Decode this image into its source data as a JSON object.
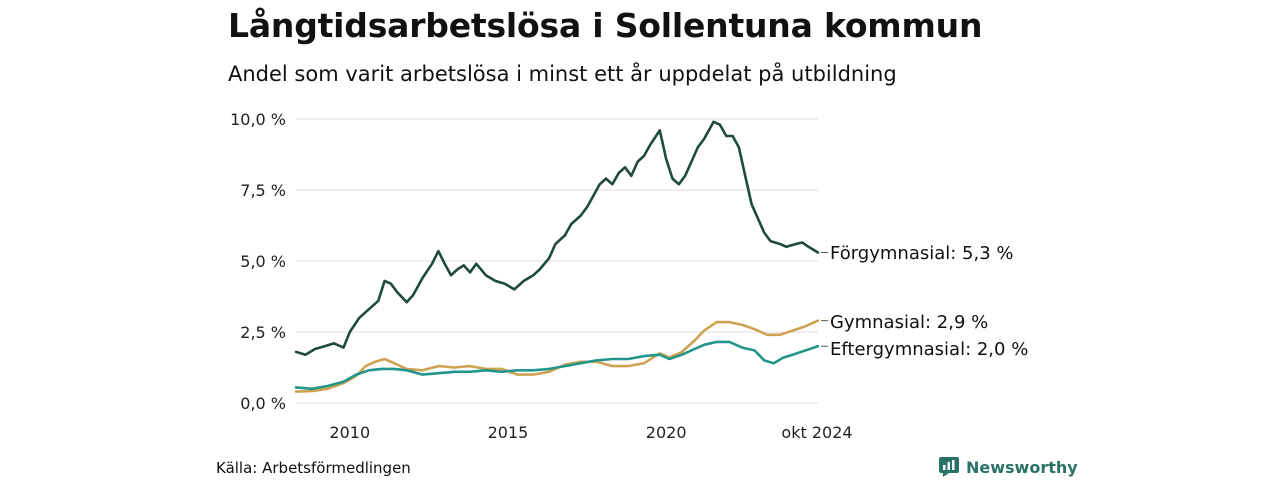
{
  "title": "Långtidsarbetslösa i Sollentuna kommun",
  "subtitle": "Andel som varit arbetslösa i minst ett år uppdelat på utbildning",
  "source": "Källa: Arbetsförmedlingen",
  "brand": "Newsworthy",
  "colors": {
    "forgymnasial": "#1f4a40",
    "gymnasial": "#cfa252",
    "eftergymnasial": "#22968a",
    "grid": "#dddddd",
    "brand": "#2a7268"
  },
  "chart_data": {
    "type": "line",
    "title": "Långtidsarbetslösa i Sollentuna kommun",
    "subtitle": "Andel som varit arbetslösa i minst ett år uppdelat på utbildning",
    "xlabel": "",
    "ylabel": "",
    "xlim": [
      2008.3,
      2024.8
    ],
    "ylim": [
      0,
      10
    ],
    "y_ticks": [
      0,
      2.5,
      5,
      7.5,
      10
    ],
    "y_tick_labels": [
      "0,0 %",
      "2,5 %",
      "5,0 %",
      "7,5 %",
      "10,0 %"
    ],
    "x_ticks": [
      2010,
      2015,
      2020,
      2024.8
    ],
    "x_tick_labels": [
      "2010",
      "2015",
      "2020",
      "okt 2024"
    ],
    "grid": true,
    "series": [
      {
        "name": "Förgymnasial",
        "end_label": "Förgymnasial: 5,3 %",
        "color": "#1f4a40",
        "points": [
          [
            2008.3,
            1.8
          ],
          [
            2008.6,
            1.7
          ],
          [
            2008.9,
            1.9
          ],
          [
            2009.2,
            2.0
          ],
          [
            2009.5,
            2.1
          ],
          [
            2009.8,
            1.95
          ],
          [
            2010.0,
            2.5
          ],
          [
            2010.3,
            3.0
          ],
          [
            2010.6,
            3.3
          ],
          [
            2010.9,
            3.6
          ],
          [
            2011.1,
            4.3
          ],
          [
            2011.3,
            4.2
          ],
          [
            2011.5,
            3.9
          ],
          [
            2011.8,
            3.55
          ],
          [
            2012.0,
            3.8
          ],
          [
            2012.3,
            4.4
          ],
          [
            2012.6,
            4.9
          ],
          [
            2012.8,
            5.35
          ],
          [
            2013.0,
            4.9
          ],
          [
            2013.2,
            4.5
          ],
          [
            2013.4,
            4.7
          ],
          [
            2013.6,
            4.85
          ],
          [
            2013.8,
            4.6
          ],
          [
            2014.0,
            4.9
          ],
          [
            2014.3,
            4.5
          ],
          [
            2014.6,
            4.3
          ],
          [
            2014.9,
            4.2
          ],
          [
            2015.2,
            4.0
          ],
          [
            2015.5,
            4.3
          ],
          [
            2015.8,
            4.5
          ],
          [
            2016.0,
            4.7
          ],
          [
            2016.3,
            5.1
          ],
          [
            2016.5,
            5.6
          ],
          [
            2016.8,
            5.9
          ],
          [
            2017.0,
            6.3
          ],
          [
            2017.3,
            6.6
          ],
          [
            2017.5,
            6.9
          ],
          [
            2017.7,
            7.3
          ],
          [
            2017.9,
            7.7
          ],
          [
            2018.1,
            7.9
          ],
          [
            2018.3,
            7.7
          ],
          [
            2018.5,
            8.1
          ],
          [
            2018.7,
            8.3
          ],
          [
            2018.9,
            8.0
          ],
          [
            2019.1,
            8.5
          ],
          [
            2019.3,
            8.7
          ],
          [
            2019.5,
            9.1
          ],
          [
            2019.8,
            9.6
          ],
          [
            2020.0,
            8.6
          ],
          [
            2020.2,
            7.9
          ],
          [
            2020.4,
            7.7
          ],
          [
            2020.6,
            8.0
          ],
          [
            2020.8,
            8.5
          ],
          [
            2021.0,
            9.0
          ],
          [
            2021.2,
            9.3
          ],
          [
            2021.5,
            9.9
          ],
          [
            2021.7,
            9.8
          ],
          [
            2021.9,
            9.4
          ],
          [
            2022.1,
            9.4
          ],
          [
            2022.3,
            9.0
          ],
          [
            2022.5,
            8.0
          ],
          [
            2022.7,
            7.0
          ],
          [
            2022.9,
            6.5
          ],
          [
            2023.1,
            6.0
          ],
          [
            2023.3,
            5.7
          ],
          [
            2023.6,
            5.6
          ],
          [
            2023.8,
            5.5
          ],
          [
            2024.1,
            5.6
          ],
          [
            2024.3,
            5.65
          ],
          [
            2024.5,
            5.5
          ],
          [
            2024.8,
            5.3
          ]
        ]
      },
      {
        "name": "Gymnasial",
        "end_label": "Gymnasial: 2,9 %",
        "color": "#cfa252",
        "points": [
          [
            2008.3,
            0.4
          ],
          [
            2008.8,
            0.42
          ],
          [
            2009.3,
            0.5
          ],
          [
            2009.8,
            0.7
          ],
          [
            2010.2,
            0.95
          ],
          [
            2010.5,
            1.3
          ],
          [
            2010.8,
            1.45
          ],
          [
            2011.1,
            1.55
          ],
          [
            2011.4,
            1.4
          ],
          [
            2011.8,
            1.2
          ],
          [
            2012.3,
            1.15
          ],
          [
            2012.8,
            1.3
          ],
          [
            2013.3,
            1.25
          ],
          [
            2013.8,
            1.3
          ],
          [
            2014.3,
            1.2
          ],
          [
            2014.8,
            1.2
          ],
          [
            2015.3,
            1.0
          ],
          [
            2015.8,
            1.0
          ],
          [
            2016.3,
            1.1
          ],
          [
            2016.8,
            1.35
          ],
          [
            2017.3,
            1.45
          ],
          [
            2017.8,
            1.45
          ],
          [
            2018.3,
            1.3
          ],
          [
            2018.8,
            1.3
          ],
          [
            2019.3,
            1.4
          ],
          [
            2019.8,
            1.75
          ],
          [
            2020.1,
            1.6
          ],
          [
            2020.5,
            1.8
          ],
          [
            2020.9,
            2.2
          ],
          [
            2021.2,
            2.55
          ],
          [
            2021.6,
            2.85
          ],
          [
            2022.0,
            2.85
          ],
          [
            2022.4,
            2.75
          ],
          [
            2022.8,
            2.6
          ],
          [
            2023.2,
            2.4
          ],
          [
            2023.6,
            2.4
          ],
          [
            2024.0,
            2.55
          ],
          [
            2024.4,
            2.7
          ],
          [
            2024.8,
            2.9
          ]
        ]
      },
      {
        "name": "Eftergymnasial",
        "end_label": "Eftergymnasial: 2,0 %",
        "color": "#22968a",
        "points": [
          [
            2008.3,
            0.55
          ],
          [
            2008.8,
            0.5
          ],
          [
            2009.3,
            0.6
          ],
          [
            2009.8,
            0.75
          ],
          [
            2010.2,
            1.0
          ],
          [
            2010.6,
            1.15
          ],
          [
            2011.0,
            1.2
          ],
          [
            2011.4,
            1.2
          ],
          [
            2011.8,
            1.15
          ],
          [
            2012.3,
            1.0
          ],
          [
            2012.8,
            1.05
          ],
          [
            2013.3,
            1.1
          ],
          [
            2013.8,
            1.1
          ],
          [
            2014.3,
            1.15
          ],
          [
            2014.8,
            1.1
          ],
          [
            2015.3,
            1.15
          ],
          [
            2015.8,
            1.15
          ],
          [
            2016.3,
            1.2
          ],
          [
            2016.8,
            1.3
          ],
          [
            2017.3,
            1.4
          ],
          [
            2017.8,
            1.5
          ],
          [
            2018.3,
            1.55
          ],
          [
            2018.8,
            1.55
          ],
          [
            2019.3,
            1.65
          ],
          [
            2019.8,
            1.7
          ],
          [
            2020.1,
            1.55
          ],
          [
            2020.5,
            1.7
          ],
          [
            2020.9,
            1.9
          ],
          [
            2021.2,
            2.05
          ],
          [
            2021.6,
            2.15
          ],
          [
            2022.0,
            2.15
          ],
          [
            2022.4,
            1.95
          ],
          [
            2022.8,
            1.85
          ],
          [
            2023.1,
            1.5
          ],
          [
            2023.4,
            1.4
          ],
          [
            2023.7,
            1.6
          ],
          [
            2024.0,
            1.7
          ],
          [
            2024.4,
            1.85
          ],
          [
            2024.8,
            2.0
          ]
        ]
      }
    ]
  }
}
